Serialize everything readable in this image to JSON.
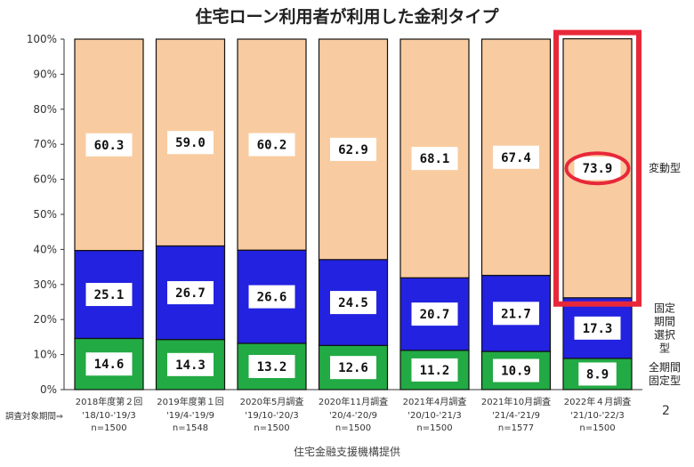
{
  "chart_data": {
    "type": "bar",
    "stacked": true,
    "title": "住宅ローン利用者が利用した金利タイプ",
    "ylim": [
      0,
      100
    ],
    "yticks": [
      "0%",
      "10%",
      "20%",
      "30%",
      "40%",
      "50%",
      "60%",
      "70%",
      "80%",
      "90%",
      "100%"
    ],
    "categories": [
      {
        "survey": "2018年度第２回",
        "period": "'18/10-'19/3",
        "n": "n=1500"
      },
      {
        "survey": "2019年度第１回",
        "period": "'19/4-'19/9",
        "n": "n=1548"
      },
      {
        "survey": "2020年5月調査",
        "period": "'19/10-'20/3",
        "n": "n=1500"
      },
      {
        "survey": "2020年11月調査",
        "period": "'20/4-'20/9",
        "n": "n=1500"
      },
      {
        "survey": "2021年4月調査",
        "period": "'20/10-'21/3",
        "n": "n=1500"
      },
      {
        "survey": "2021年10月調査",
        "period": "'21/4-'21/9",
        "n": "n=1577"
      },
      {
        "survey": "2022年４月調査",
        "period": "'21/10-'22/3",
        "n": "n=1500"
      }
    ],
    "series": [
      {
        "name": "全期間固定型",
        "color": "#22aa44",
        "values": [
          14.6,
          14.3,
          13.2,
          12.6,
          11.2,
          10.9,
          8.9
        ],
        "labels": [
          "14.6",
          "14.3",
          "13.2",
          "12.6",
          "11.2",
          "10.9",
          "8.9"
        ]
      },
      {
        "name": "固定期間選択型",
        "color": "#2222e0",
        "values": [
          25.1,
          26.7,
          26.6,
          24.5,
          20.7,
          21.7,
          17.3
        ],
        "labels": [
          "25.1",
          "26.7",
          "26.6",
          "24.5",
          "20.7",
          "21.7",
          "17.3"
        ]
      },
      {
        "name": "変動型",
        "color": "#f9cba0",
        "values": [
          60.3,
          59.0,
          60.2,
          62.9,
          68.1,
          67.4,
          73.9
        ],
        "labels": [
          "60.3",
          "59.0",
          "60.2",
          "62.9",
          "68.1",
          "67.4",
          "73.9"
        ]
      }
    ],
    "legend": [
      {
        "series": "変動型",
        "lines": [
          "変動型"
        ]
      },
      {
        "series": "固定期間選択型",
        "lines": [
          "固定",
          "期間",
          "選択",
          "型"
        ]
      },
      {
        "series": "全期間固定型",
        "lines": [
          "全期間",
          "固定型"
        ]
      }
    ],
    "highlight": {
      "category_index": 6,
      "series": "変動型",
      "color": "#e8283a"
    }
  },
  "period_prefix": "調査対象期間⇒",
  "page_number": "2",
  "source_note": "住宅金融支援機構提供"
}
